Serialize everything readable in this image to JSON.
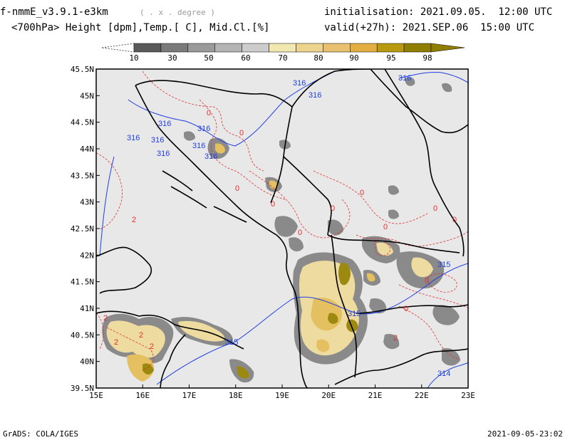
{
  "header": {
    "model_title": "f-nmmE_v3.9.1-e3km",
    "resolution_unit": "( . x . degree )",
    "variables": "<700hPa> Height [dpm],Temp.[ C], Mid.Cl.[%]",
    "initialisation": "initialisation: 2021.09.05.  12:00 UTC",
    "valid": "valid(+27h): 2021.SEP.06  15:00 UTC"
  },
  "colorbar": {
    "labels": [
      "10",
      "30",
      "50",
      "60",
      "70",
      "80",
      "90",
      "95",
      "98"
    ],
    "colors": [
      "#5a5a5a",
      "#7a7a7a",
      "#9a9a9a",
      "#b4b4b4",
      "#cccccc",
      "#f0e8b0",
      "#ecd48e",
      "#e8c070",
      "#e2ae40",
      "#b89a10",
      "#8f7e00"
    ]
  },
  "map": {
    "background": "#e8e8e8",
    "lat_labels": [
      "45.5N",
      "45N",
      "44.5N",
      "44N",
      "43.5N",
      "43N",
      "42.5N",
      "42N",
      "41.5N",
      "41N",
      "40.5N",
      "40N",
      "39.5N"
    ],
    "lon_labels": [
      "15E",
      "16E",
      "17E",
      "18E",
      "19E",
      "20E",
      "21E",
      "22E",
      "23E"
    ],
    "height_contour_labels": [
      "316",
      "316",
      "316",
      "316",
      "316",
      "316",
      "316",
      "316",
      "315",
      "315",
      "315",
      "314",
      "316",
      "316"
    ],
    "temp_contour_labels": [
      "0",
      "0",
      "0",
      "0",
      "2",
      "2",
      "2",
      "2",
      "2",
      "2",
      "0",
      "0",
      "0",
      "0",
      "0",
      "0",
      "0",
      "0"
    ],
    "colors": {
      "coast": "#000000",
      "height_contour": "#2040e0",
      "temp_contour": "#e03030",
      "cloud_light": "#eedba0",
      "cloud_mid": "#e4c060",
      "cloud_dark": "#9c8a10",
      "cloud_gray": "#8a8a8a"
    }
  },
  "footer": {
    "left": "GrADS: COLA/IGES",
    "right": "2021-09-05-23:02"
  }
}
